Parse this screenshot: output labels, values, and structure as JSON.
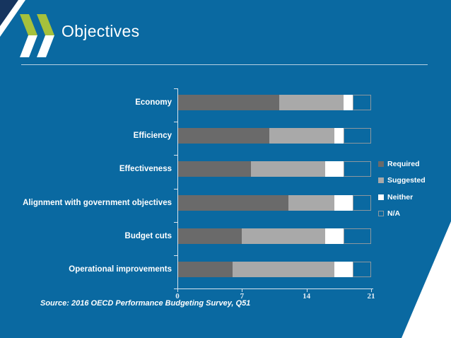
{
  "slide": {
    "title": "Objectives",
    "source": "Source: 2016 OECD Performance Budgeting Survey, Q51"
  },
  "colors": {
    "background": "#0a69a1",
    "corner_navy": "#16355f",
    "logo_green": "#a5c13c",
    "required": "#6a6a6a",
    "suggested": "#a9a9a9",
    "neither": "#ffffff",
    "na_border": "#8c979e",
    "axis": "#d9e4ee"
  },
  "chart_data": {
    "type": "bar",
    "orientation": "horizontal",
    "stacked": true,
    "title": "",
    "xlabel": "",
    "ylabel": "",
    "xlim": [
      0,
      21
    ],
    "xticks": [
      0,
      7,
      14,
      21
    ],
    "grid": false,
    "legend_position": "right",
    "categories": [
      "Economy",
      "Efficiency",
      "Effectiveness",
      "Alignment with government objectives",
      "Budget cuts",
      "Operational improvements"
    ],
    "series": [
      {
        "name": "Required",
        "color": "#6a6a6a",
        "values": [
          11,
          10,
          8,
          12,
          7,
          6
        ]
      },
      {
        "name": "Suggested",
        "color": "#a9a9a9",
        "values": [
          7,
          7,
          8,
          5,
          9,
          11
        ]
      },
      {
        "name": "Neither",
        "color": "#ffffff",
        "values": [
          1,
          1,
          2,
          2,
          2,
          2
        ]
      },
      {
        "name": "N/A",
        "color": "none",
        "values": [
          2,
          3,
          3,
          2,
          3,
          2
        ]
      }
    ]
  }
}
